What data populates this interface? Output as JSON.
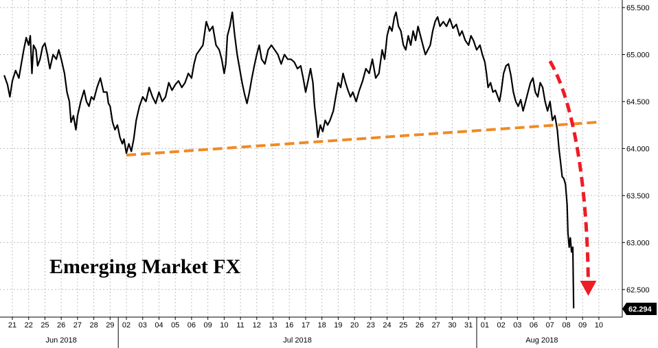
{
  "chart_data": {
    "type": "line",
    "title": "Emerging Market FX",
    "xlabel": "",
    "ylabel": "",
    "ylim": [
      62.2,
      65.55
    ],
    "y_ticks": [
      "65.500",
      "65.000",
      "64.500",
      "64.000",
      "63.500",
      "63.000",
      "62.500"
    ],
    "y_tick_values": [
      65.5,
      65.0,
      64.5,
      64.0,
      63.5,
      63.0,
      62.5
    ],
    "x_tick_labels": [
      "21",
      "22",
      "25",
      "26",
      "27",
      "28",
      "29",
      "02",
      "03",
      "04",
      "05",
      "06",
      "09",
      "10",
      "11",
      "12",
      "13",
      "16",
      "17",
      "18",
      "19",
      "20",
      "23",
      "24",
      "25",
      "26",
      "27",
      "30",
      "31",
      "01",
      "02",
      "03",
      "06",
      "07",
      "08",
      "09",
      "10"
    ],
    "months": [
      {
        "label": "Jun 2018",
        "start": 0,
        "end": 6
      },
      {
        "label": "Jul 2018",
        "start": 7,
        "end": 28
      },
      {
        "label": "Aug 2018",
        "start": 29,
        "end": 36
      }
    ],
    "month_separators": [
      7,
      29
    ],
    "series": [
      {
        "color": "#000000",
        "values": [
          [
            -0.5,
            64.78
          ],
          [
            -0.3,
            64.68
          ],
          [
            -0.15,
            64.55
          ],
          [
            0,
            64.72
          ],
          [
            0.2,
            64.83
          ],
          [
            0.4,
            64.75
          ],
          [
            0.55,
            64.9
          ],
          [
            0.7,
            65.05
          ],
          [
            0.85,
            65.18
          ],
          [
            1.0,
            65.1
          ],
          [
            1.1,
            65.2
          ],
          [
            1.2,
            64.8
          ],
          [
            1.3,
            65.1
          ],
          [
            1.45,
            65.05
          ],
          [
            1.55,
            64.88
          ],
          [
            1.7,
            64.95
          ],
          [
            1.85,
            65.08
          ],
          [
            2.0,
            65.12
          ],
          [
            2.15,
            65.0
          ],
          [
            2.3,
            64.85
          ],
          [
            2.5,
            65.0
          ],
          [
            2.7,
            64.95
          ],
          [
            2.85,
            65.05
          ],
          [
            3.0,
            64.95
          ],
          [
            3.2,
            64.8
          ],
          [
            3.35,
            64.6
          ],
          [
            3.5,
            64.5
          ],
          [
            3.6,
            64.28
          ],
          [
            3.75,
            64.35
          ],
          [
            3.9,
            64.2
          ],
          [
            4.0,
            64.35
          ],
          [
            4.2,
            64.5
          ],
          [
            4.4,
            64.62
          ],
          [
            4.55,
            64.5
          ],
          [
            4.7,
            64.45
          ],
          [
            4.85,
            64.55
          ],
          [
            5.0,
            64.52
          ],
          [
            5.2,
            64.65
          ],
          [
            5.4,
            64.75
          ],
          [
            5.6,
            64.6
          ],
          [
            5.8,
            64.6
          ],
          [
            5.9,
            64.48
          ],
          [
            6.0,
            64.45
          ],
          [
            6.15,
            64.28
          ],
          [
            6.3,
            64.2
          ],
          [
            6.45,
            64.25
          ],
          [
            6.6,
            64.12
          ],
          [
            6.75,
            64.05
          ],
          [
            6.85,
            64.1
          ],
          [
            7.0,
            63.95
          ],
          [
            7.15,
            64.05
          ],
          [
            7.3,
            63.97
          ],
          [
            7.45,
            64.1
          ],
          [
            7.6,
            64.3
          ],
          [
            7.8,
            64.45
          ],
          [
            8.0,
            64.55
          ],
          [
            8.2,
            64.5
          ],
          [
            8.4,
            64.65
          ],
          [
            8.6,
            64.55
          ],
          [
            8.8,
            64.48
          ],
          [
            9.0,
            64.6
          ],
          [
            9.2,
            64.5
          ],
          [
            9.4,
            64.55
          ],
          [
            9.6,
            64.7
          ],
          [
            9.8,
            64.62
          ],
          [
            10.0,
            64.68
          ],
          [
            10.2,
            64.72
          ],
          [
            10.4,
            64.65
          ],
          [
            10.6,
            64.7
          ],
          [
            10.8,
            64.8
          ],
          [
            11.0,
            64.75
          ],
          [
            11.15,
            64.9
          ],
          [
            11.3,
            65.0
          ],
          [
            11.5,
            65.05
          ],
          [
            11.7,
            65.1
          ],
          [
            11.9,
            65.35
          ],
          [
            12.1,
            65.25
          ],
          [
            12.3,
            65.3
          ],
          [
            12.5,
            65.1
          ],
          [
            12.7,
            65.05
          ],
          [
            12.85,
            64.95
          ],
          [
            13.0,
            64.8
          ],
          [
            13.1,
            64.9
          ],
          [
            13.2,
            65.2
          ],
          [
            13.35,
            65.3
          ],
          [
            13.5,
            65.45
          ],
          [
            13.65,
            65.2
          ],
          [
            13.8,
            65.0
          ],
          [
            13.95,
            64.85
          ],
          [
            14.1,
            64.7
          ],
          [
            14.25,
            64.58
          ],
          [
            14.4,
            64.48
          ],
          [
            14.55,
            64.6
          ],
          [
            14.7,
            64.75
          ],
          [
            14.85,
            64.88
          ],
          [
            15.0,
            65.0
          ],
          [
            15.15,
            65.1
          ],
          [
            15.3,
            64.95
          ],
          [
            15.5,
            64.9
          ],
          [
            15.7,
            65.05
          ],
          [
            15.9,
            65.1
          ],
          [
            16.1,
            65.05
          ],
          [
            16.3,
            65.0
          ],
          [
            16.5,
            64.9
          ],
          [
            16.7,
            65.0
          ],
          [
            16.9,
            64.95
          ],
          [
            17.1,
            64.95
          ],
          [
            17.3,
            64.92
          ],
          [
            17.5,
            64.85
          ],
          [
            17.7,
            64.88
          ],
          [
            17.85,
            64.75
          ],
          [
            18.0,
            64.6
          ],
          [
            18.15,
            64.72
          ],
          [
            18.3,
            64.85
          ],
          [
            18.45,
            64.7
          ],
          [
            18.55,
            64.45
          ],
          [
            18.65,
            64.3
          ],
          [
            18.75,
            64.12
          ],
          [
            18.9,
            64.25
          ],
          [
            19.05,
            64.18
          ],
          [
            19.2,
            64.3
          ],
          [
            19.35,
            64.25
          ],
          [
            19.5,
            64.3
          ],
          [
            19.7,
            64.4
          ],
          [
            19.85,
            64.55
          ],
          [
            20.0,
            64.7
          ],
          [
            20.15,
            64.65
          ],
          [
            20.3,
            64.8
          ],
          [
            20.45,
            64.7
          ],
          [
            20.6,
            64.62
          ],
          [
            20.75,
            64.55
          ],
          [
            20.9,
            64.6
          ],
          [
            21.1,
            64.5
          ],
          [
            21.3,
            64.62
          ],
          [
            21.5,
            64.72
          ],
          [
            21.7,
            64.85
          ],
          [
            21.9,
            64.8
          ],
          [
            22.1,
            64.95
          ],
          [
            22.3,
            64.75
          ],
          [
            22.5,
            64.8
          ],
          [
            22.7,
            65.05
          ],
          [
            22.85,
            64.95
          ],
          [
            23.0,
            65.2
          ],
          [
            23.15,
            65.3
          ],
          [
            23.3,
            65.25
          ],
          [
            23.45,
            65.4
          ],
          [
            23.55,
            65.45
          ],
          [
            23.7,
            65.3
          ],
          [
            23.85,
            65.25
          ],
          [
            24.0,
            65.1
          ],
          [
            24.15,
            65.05
          ],
          [
            24.3,
            65.2
          ],
          [
            24.45,
            65.1
          ],
          [
            24.6,
            65.25
          ],
          [
            24.75,
            65.15
          ],
          [
            24.9,
            65.3
          ],
          [
            25.05,
            65.2
          ],
          [
            25.2,
            65.1
          ],
          [
            25.35,
            65.0
          ],
          [
            25.5,
            65.05
          ],
          [
            25.65,
            65.1
          ],
          [
            25.8,
            65.25
          ],
          [
            25.95,
            65.35
          ],
          [
            26.1,
            65.4
          ],
          [
            26.25,
            65.3
          ],
          [
            26.45,
            65.35
          ],
          [
            26.65,
            65.3
          ],
          [
            26.85,
            65.38
          ],
          [
            27.05,
            65.28
          ],
          [
            27.25,
            65.32
          ],
          [
            27.45,
            65.2
          ],
          [
            27.6,
            65.25
          ],
          [
            27.8,
            65.15
          ],
          [
            28.0,
            65.1
          ],
          [
            28.15,
            65.2
          ],
          [
            28.3,
            65.15
          ],
          [
            28.5,
            65.05
          ],
          [
            28.7,
            65.1
          ],
          [
            28.85,
            65.0
          ],
          [
            29.0,
            64.92
          ],
          [
            29.1,
            64.8
          ],
          [
            29.2,
            64.65
          ],
          [
            29.35,
            64.7
          ],
          [
            29.5,
            64.6
          ],
          [
            29.65,
            64.62
          ],
          [
            29.8,
            64.55
          ],
          [
            29.9,
            64.5
          ],
          [
            30.0,
            64.6
          ],
          [
            30.15,
            64.8
          ],
          [
            30.3,
            64.88
          ],
          [
            30.45,
            64.9
          ],
          [
            30.6,
            64.78
          ],
          [
            30.75,
            64.6
          ],
          [
            30.9,
            64.5
          ],
          [
            31.05,
            64.45
          ],
          [
            31.2,
            64.52
          ],
          [
            31.35,
            64.4
          ],
          [
            31.5,
            64.5
          ],
          [
            31.65,
            64.6
          ],
          [
            31.8,
            64.7
          ],
          [
            31.95,
            64.75
          ],
          [
            32.1,
            64.6
          ],
          [
            32.25,
            64.55
          ],
          [
            32.4,
            64.7
          ],
          [
            32.55,
            64.65
          ],
          [
            32.7,
            64.5
          ],
          [
            32.85,
            64.4
          ],
          [
            33.0,
            64.5
          ],
          [
            33.15,
            64.3
          ],
          [
            33.3,
            64.35
          ],
          [
            33.45,
            64.2
          ],
          [
            33.55,
            64.0
          ],
          [
            33.65,
            63.85
          ],
          [
            33.75,
            63.7
          ],
          [
            33.85,
            63.68
          ],
          [
            33.95,
            63.62
          ],
          [
            34.05,
            63.4
          ],
          [
            34.1,
            63.1
          ],
          [
            34.18,
            62.95
          ],
          [
            34.25,
            63.05
          ],
          [
            34.32,
            62.9
          ],
          [
            34.4,
            62.95
          ],
          [
            34.45,
            62.3
          ]
        ]
      }
    ],
    "trendline": {
      "color": "#f08a24",
      "points": [
        [
          7.0,
          63.93
        ],
        [
          35.9,
          64.28
        ]
      ]
    },
    "arrow": {
      "color": "#ee1c25",
      "points": [
        [
          33.0,
          64.93
        ],
        [
          34.6,
          64.45
        ],
        [
          35.3,
          63.5
        ],
        [
          35.35,
          62.55
        ]
      ]
    },
    "last_value": {
      "label": "62.294",
      "value": 62.294,
      "color": "#000000"
    }
  }
}
